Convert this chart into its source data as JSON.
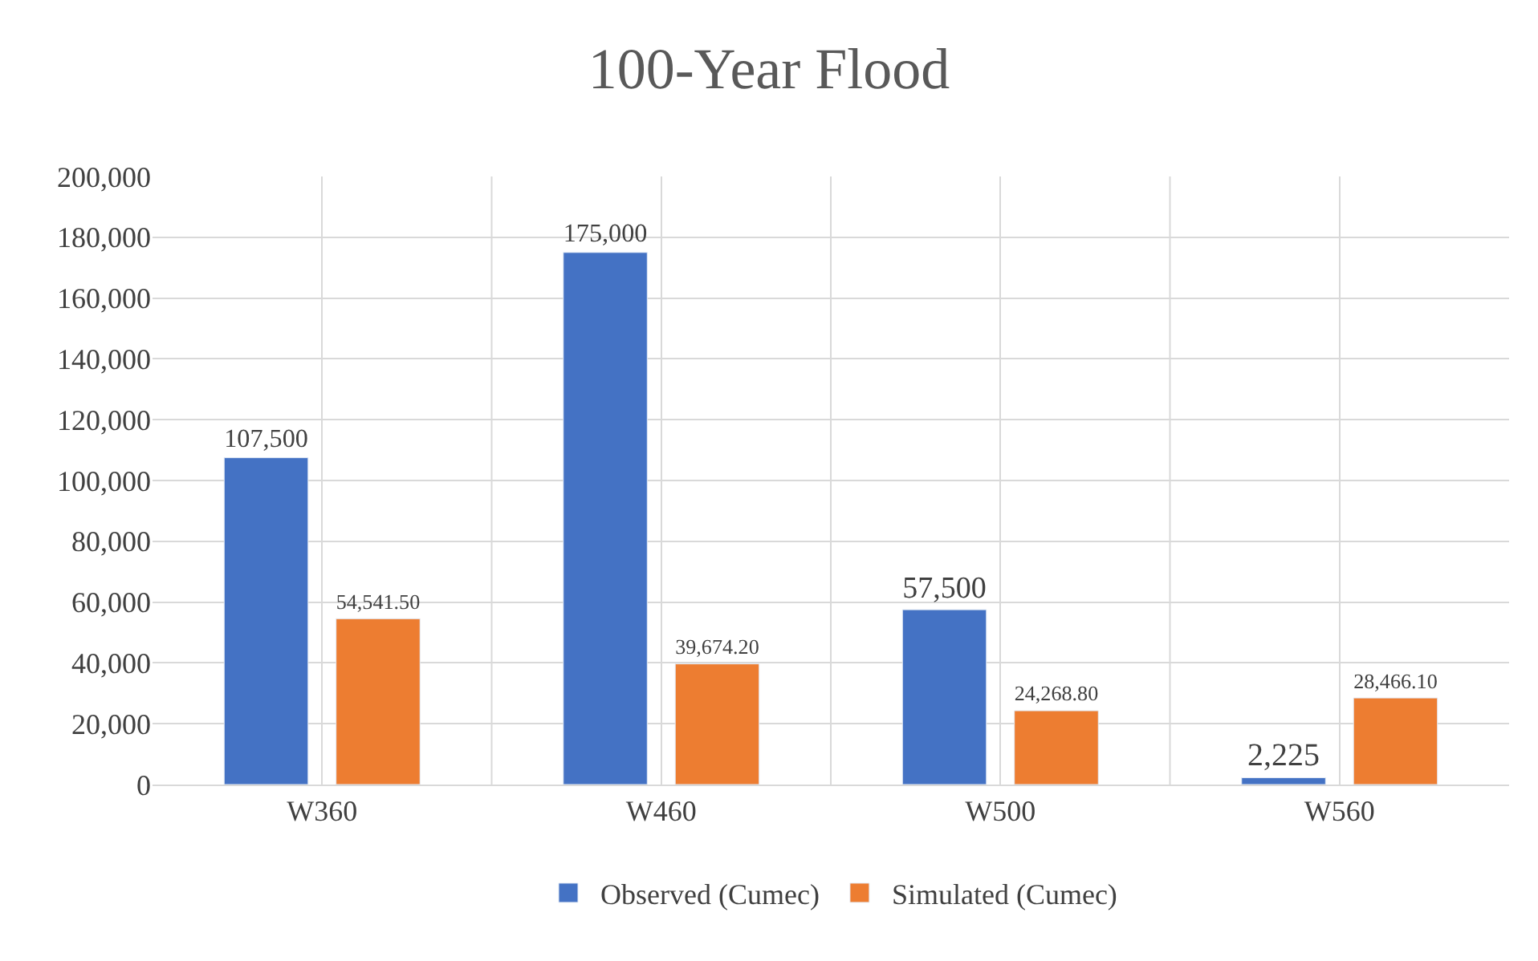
{
  "chart_data": {
    "type": "bar",
    "title": "100-Year Flood",
    "categories": [
      "W360",
      "W460",
      "W500",
      "W560"
    ],
    "series": [
      {
        "name": "Observed (Cumec)",
        "color": "#4472c4",
        "values": [
          107500,
          175000,
          57500,
          2225
        ],
        "value_labels": [
          "107,500",
          "175,000",
          "57,500",
          "2,225"
        ]
      },
      {
        "name": "Simulated (Cumec)",
        "color": "#ed7d31",
        "values": [
          54541.5,
          39674.2,
          24268.8,
          28466.1
        ],
        "value_labels": [
          "54,541.50",
          "39,674.20",
          "24,268.80",
          "28,466.10"
        ]
      }
    ],
    "ylim": [
      0,
      200000
    ],
    "yticks": [
      0,
      {
        "value": 20000,
        "label": "20,000"
      },
      {
        "value": 40000,
        "label": "40,000"
      },
      {
        "value": 60000,
        "label": "60,000"
      },
      {
        "value": 80000,
        "label": "80,000"
      },
      {
        "value": 100000,
        "label": "100,000"
      },
      {
        "value": 120000,
        "label": "120,000"
      },
      {
        "value": 140000,
        "label": "140,000"
      },
      {
        "value": 160000,
        "label": "160,000"
      },
      {
        "value": 180000,
        "label": "180,000"
      },
      {
        "value": 200000,
        "label": "200,000"
      }
    ],
    "grid": true,
    "legend": "bottom"
  }
}
